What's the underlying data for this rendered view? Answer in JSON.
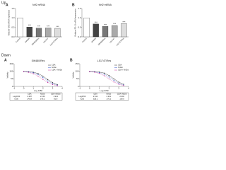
{
  "sections": [
    "Up",
    "Down"
  ],
  "chart_data": [
    {
      "type": "bar",
      "label": "A",
      "title": "Nrf2 mRNA",
      "y_label": "Relative Nrf2 mRNA expression",
      "categories": [
        "Control",
        "SW480",
        "SW480/Res",
        "LS174T",
        "LS174T/Res"
      ],
      "values": [
        1.0,
        0.52,
        0.46,
        0.47,
        0.45
      ],
      "colors": [
        "#ffffff",
        "#444444",
        "#777777",
        "#aaaaaa",
        "#dddddd"
      ],
      "significance": [
        null,
        "***",
        "***",
        "***",
        "***"
      ],
      "ylim": [
        0,
        1.5
      ],
      "yticks": [
        {
          "value": 0,
          "label": "0.0"
        },
        {
          "value": 0.5,
          "label": "0.5"
        },
        {
          "value": 1,
          "label": "1.0"
        },
        {
          "value": 1.5,
          "label": "1.5"
        }
      ]
    },
    {
      "type": "bar",
      "label": "B",
      "title": "Nrf2 mRNA",
      "y_label": "Relative PD-L1 mRNA expression",
      "categories": [
        "Control",
        "SW480",
        "SW480/Res",
        "LS174T",
        "LS174T/Res"
      ],
      "values": [
        1.0,
        0.68,
        0.55,
        0.6,
        0.7
      ],
      "colors": [
        "#ffffff",
        "#444444",
        "#777777",
        "#aaaaaa",
        "#dddddd"
      ],
      "significance": [
        null,
        "***",
        "***",
        "***",
        "***"
      ],
      "ylim": [
        0,
        1.5
      ],
      "yticks": [
        {
          "value": 0,
          "label": "0.0"
        },
        {
          "value": 0.5,
          "label": "0.5"
        },
        {
          "value": 1,
          "label": "1.0"
        },
        {
          "value": 1.5,
          "label": "1.5"
        }
      ]
    },
    {
      "type": "line",
      "label": "A",
      "title": "SW480/Res",
      "x_label": "Log IC50",
      "y_label": "Viability",
      "x": [
        0,
        0.5,
        1,
        1.5,
        2,
        2.5,
        3,
        3.5
      ],
      "series": [
        {
          "name": "CDA",
          "color": "#222222",
          "values": [
            100,
            98,
            94,
            85,
            68,
            45,
            25,
            12
          ]
        },
        {
          "name": "Nrf2si",
          "color": "#3355cc",
          "values": [
            99,
            96,
            90,
            78,
            58,
            36,
            18,
            8
          ]
        },
        {
          "name": "CDA + Nrf2si",
          "color": "#cc3399",
          "values": [
            98,
            93,
            84,
            68,
            46,
            26,
            12,
            5
          ]
        }
      ],
      "xlim": [
        -1,
        4
      ],
      "xticks": [
        -1,
        0,
        1,
        2,
        3,
        4
      ],
      "ylim": [
        0,
        150
      ],
      "yticks": [
        0,
        50,
        100,
        150
      ],
      "table": {
        "header": [
          null,
          "CDA",
          "Nrf2si",
          "CDA+Nrf2si"
        ],
        "rows": [
          [
            "LogIC50",
            "2.387",
            "2.156",
            "1.913"
          ],
          [
            "IC50",
            "243.8",
            "143.2",
            "81.8"
          ]
        ]
      }
    },
    {
      "type": "line",
      "label": "B",
      "title": "LS174T/Res",
      "x_label": "Log IC50",
      "y_label": "Viability",
      "x": [
        0,
        0.5,
        1,
        1.5,
        2,
        2.5,
        3,
        3.5
      ],
      "series": [
        {
          "name": "CDA",
          "color": "#222222",
          "values": [
            100,
            98,
            95,
            88,
            72,
            50,
            28,
            14
          ]
        },
        {
          "name": "Nrf2si",
          "color": "#3355cc",
          "values": [
            99,
            96,
            91,
            80,
            62,
            40,
            20,
            9
          ]
        },
        {
          "name": "CDA + Nrf2si",
          "color": "#cc3399",
          "values": [
            98,
            94,
            86,
            71,
            50,
            29,
            14,
            6
          ]
        }
      ],
      "xlim": [
        -1,
        4
      ],
      "xticks": [
        -1,
        0,
        1,
        2,
        3,
        4
      ],
      "ylim": [
        0,
        150
      ],
      "yticks": [
        0,
        50,
        100,
        150
      ],
      "table": {
        "header": [
          null,
          "CDA",
          "Nrf2si",
          "CDA+Nrf2si"
        ],
        "rows": [
          [
            "LogIC50",
            "2.512",
            "2.231",
            "2.004"
          ],
          [
            "IC50",
            "325.1",
            "170.2",
            "100.9"
          ]
        ]
      }
    }
  ]
}
